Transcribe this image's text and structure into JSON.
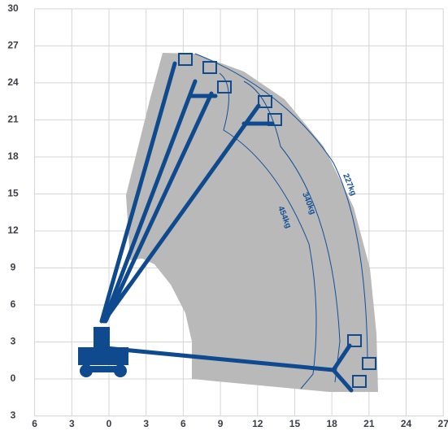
{
  "axes": {
    "xticks": [
      {
        "value": -6,
        "label": "6"
      },
      {
        "value": -3,
        "label": "3"
      },
      0,
      3,
      6,
      9,
      12,
      15,
      18,
      21,
      24,
      27
    ],
    "yticks": [
      30,
      27,
      24,
      21,
      18,
      15,
      12,
      9,
      6,
      3,
      0,
      {
        "value": -3,
        "label": "3"
      }
    ]
  },
  "load_labels": [
    "227kg",
    "340kg",
    "454kg"
  ]
}
